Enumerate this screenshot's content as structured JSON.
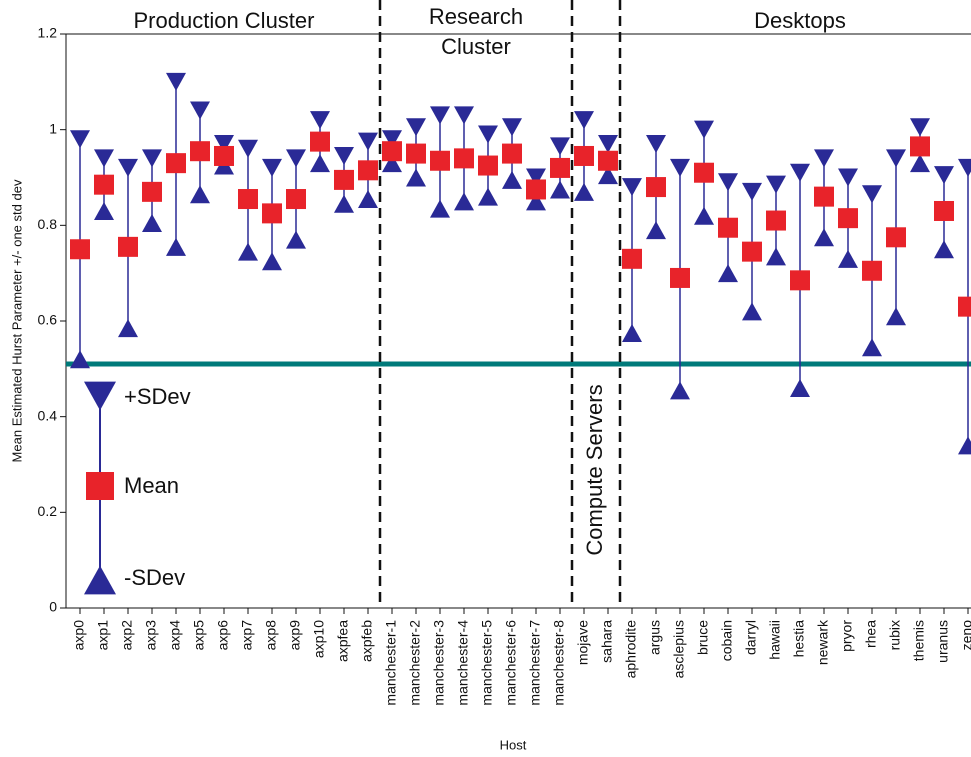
{
  "chart_data": {
    "type": "errorbar",
    "x_label": "Host",
    "y_label": "Mean Estimated Hurst Parameter +/- one std dev",
    "categories": [
      "axp0",
      "axp1",
      "axp2",
      "axp3",
      "axp4",
      "axp5",
      "axp6",
      "axp7",
      "axp8",
      "axp9",
      "axp10",
      "axpfea",
      "axpfeb",
      "manchester-1",
      "manchester-2",
      "manchester-3",
      "manchester-4",
      "manchester-5",
      "manchester-6",
      "manchester-7",
      "manchester-8",
      "mojave",
      "sahara",
      "aphrodite",
      "argus",
      "asclepius",
      "bruce",
      "cobain",
      "darryl",
      "hawaii",
      "hestia",
      "newark",
      "pryor",
      "rhea",
      "rubix",
      "themis",
      "uranus",
      "zeno"
    ],
    "series": [
      {
        "name": "+SDev",
        "color": "#2a2a96",
        "values": [
          0.98,
          0.94,
          0.92,
          0.94,
          1.1,
          1.04,
          0.97,
          0.96,
          0.92,
          0.94,
          1.02,
          0.945,
          0.975,
          0.98,
          1.005,
          1.03,
          1.03,
          0.99,
          1.005,
          0.9,
          0.965,
          1.02,
          0.97,
          0.88,
          0.97,
          0.92,
          1.0,
          0.89,
          0.87,
          0.885,
          0.91,
          0.94,
          0.9,
          0.865,
          0.94,
          1.005,
          0.905,
          0.92
        ]
      },
      {
        "name": "Mean",
        "color": "#e8232a",
        "values": [
          0.75,
          0.885,
          0.755,
          0.87,
          0.93,
          0.955,
          0.945,
          0.855,
          0.825,
          0.855,
          0.975,
          0.895,
          0.915,
          0.955,
          0.95,
          0.935,
          0.94,
          0.925,
          0.95,
          0.875,
          0.92,
          0.945,
          0.935,
          0.73,
          0.88,
          0.69,
          0.91,
          0.795,
          0.745,
          0.81,
          0.685,
          0.86,
          0.815,
          0.705,
          0.775,
          0.965,
          0.83,
          0.63
        ]
      },
      {
        "name": "-SDev",
        "color": "#2a2a96",
        "values": [
          0.52,
          0.83,
          0.585,
          0.805,
          0.755,
          0.865,
          0.925,
          0.745,
          0.725,
          0.77,
          0.93,
          0.845,
          0.855,
          0.93,
          0.9,
          0.835,
          0.85,
          0.86,
          0.895,
          0.85,
          0.875,
          0.87,
          0.905,
          0.575,
          0.79,
          0.455,
          0.82,
          0.7,
          0.62,
          0.735,
          0.46,
          0.775,
          0.73,
          0.545,
          0.61,
          0.93,
          0.75,
          0.34
        ]
      }
    ],
    "groups": [
      {
        "lines": [
          "Production Cluster"
        ],
        "size": 13
      },
      {
        "lines": [
          "Research",
          "Cluster"
        ],
        "size": 8
      },
      {
        "lines": [
          "Compute Servers"
        ],
        "size": 2,
        "vertical": true
      },
      {
        "lines": [
          "Desktops"
        ],
        "size": 15
      }
    ],
    "reference_line": {
      "value": 0.51,
      "color": "#007a7a"
    },
    "ylim": [
      0,
      1.2
    ],
    "yticks": [
      0,
      0.2,
      0.4,
      0.6,
      0.8,
      1,
      1.2
    ]
  }
}
